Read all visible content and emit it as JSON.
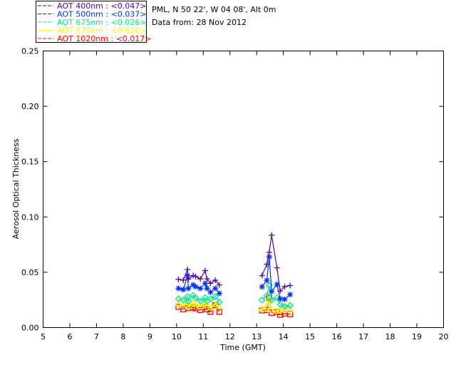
{
  "chart_data": {
    "type": "line",
    "title_lines": [
      "PML, N 50 22', W 04 08', Alt 0m",
      "Data from: 28 Nov 2012"
    ],
    "xlabel": "Time (GMT)",
    "ylabel": "Aerosol Optical Thickness",
    "xlim": [
      5,
      20
    ],
    "ylim": [
      0,
      0.25
    ],
    "xticks": [
      "5",
      "6",
      "7",
      "8",
      "9",
      "10",
      "11",
      "12",
      "13",
      "14",
      "15",
      "16",
      "17",
      "18",
      "19",
      "20"
    ],
    "yticks": [
      "0.00",
      "0.05",
      "0.10",
      "0.15",
      "0.20",
      "0.25"
    ],
    "legend_position": "top-left-outside",
    "groups_x": [
      [
        10.07,
        10.25,
        10.41,
        10.44,
        10.62,
        10.71,
        10.89,
        11.07,
        11.14,
        11.27,
        11.45,
        11.6
      ],
      [
        13.2,
        13.38,
        13.47,
        13.56,
        13.76,
        13.88,
        14.05,
        14.25
      ]
    ],
    "series": [
      {
        "name": "AOT  400nm : <0.047>",
        "color": "#5a00a0",
        "marker": "plus",
        "values": [
          [
            0.0436,
            0.0428,
            0.0525,
            0.0438,
            0.047,
            0.0462,
            0.044,
            0.0515,
            0.044,
            0.04,
            0.0428,
            0.0385
          ],
          [
            0.047,
            0.0573,
            0.068,
            0.0835,
            0.054,
            0.033,
            0.037,
            0.038
          ]
        ]
      },
      {
        "name": "AOT  500nm : <0.037>",
        "color": "#0030ff",
        "marker": "asterisk",
        "values": [
          [
            0.0354,
            0.0343,
            0.047,
            0.0354,
            0.0386,
            0.037,
            0.0354,
            0.04,
            0.0354,
            0.032,
            0.0354,
            0.0309
          ],
          [
            0.0369,
            0.0427,
            0.064,
            0.0327,
            0.039,
            0.026,
            0.0256,
            0.0298
          ]
        ]
      },
      {
        "name": "AOT  675nm : <0.026>",
        "color": "#00e890",
        "marker": "diamond",
        "values": [
          [
            0.026,
            0.025,
            0.028,
            0.024,
            0.029,
            0.027,
            0.024,
            0.027,
            0.024,
            0.026,
            0.028,
            0.023
          ],
          [
            0.025,
            0.029,
            0.038,
            0.025,
            0.027,
            0.021,
            0.019,
            0.02
          ]
        ]
      },
      {
        "name": "AOT  870nm : <0.020>",
        "color": "#f8f800",
        "marker": "triangle",
        "values": [
          [
            0.022,
            0.02,
            0.023,
            0.019,
            0.022,
            0.021,
            0.019,
            0.022,
            0.02,
            0.018,
            0.021,
            0.019
          ],
          [
            0.017,
            0.019,
            0.025,
            0.016,
            0.015,
            0.016,
            0.017,
            0.016
          ]
        ]
      },
      {
        "name": "AOT 1020nm : <0.017>",
        "color": "#ff0000",
        "marker": "square",
        "values": [
          [
            0.0187,
            0.0165,
            0.0193,
            0.0176,
            0.0183,
            0.0174,
            0.0159,
            0.0187,
            0.0165,
            0.0142,
            0.0202,
            0.0142
          ],
          [
            0.0155,
            0.016,
            0.027,
            0.0133,
            0.014,
            0.0116,
            0.0126,
            0.0122
          ]
        ]
      }
    ]
  }
}
